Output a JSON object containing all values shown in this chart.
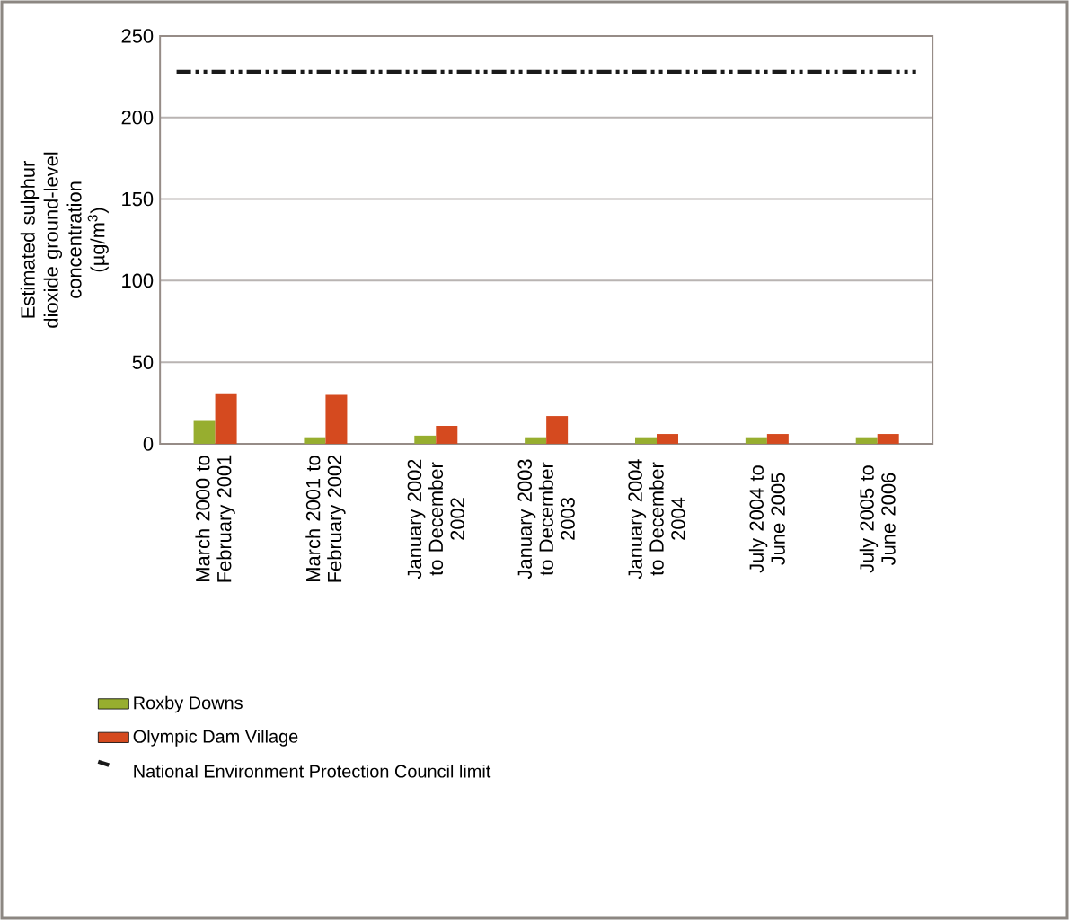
{
  "chart_data": {
    "type": "bar",
    "ylabel": "Estimated sulphur dioxide ground-level concentration (µg/m$^{3}$)",
    "categories": [
      "March 2000 to February 2001",
      "March 2001 to February 2002",
      "January 2002 to December 2002",
      "January 2003 to December 2003",
      "January 2004 to December 2004",
      "July 2004 to June 2005",
      "July 2005 to June 2006"
    ],
    "series": [
      {
        "name": "Roxby Downs",
        "color": "#97ae2f",
        "values": [
          14,
          4,
          5,
          4,
          4,
          4,
          4
        ]
      },
      {
        "name": "Olympic Dam Village",
        "color": "#d54a1f",
        "values": [
          31,
          30,
          11,
          17,
          6,
          6,
          6
        ]
      }
    ],
    "ylim": [
      0,
      250
    ],
    "yticks": [
      0,
      50,
      100,
      150,
      200,
      250
    ],
    "grid": "y",
    "legend": "bottom",
    "ref_lines": [
      {
        "axis": "y",
        "value": 228,
        "label": "National Environment Protection Council limit",
        "color": "#1a1a1a",
        "line_style": "dashdotdot"
      }
    ]
  }
}
